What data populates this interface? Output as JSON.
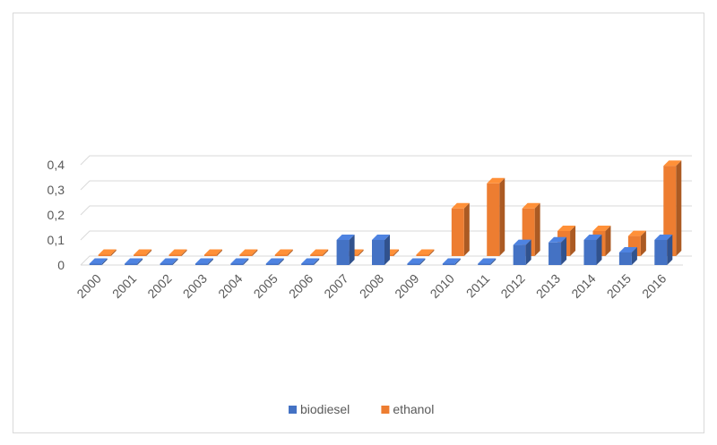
{
  "chart_data": {
    "type": "bar",
    "title": "",
    "xlabel": "",
    "ylabel": "",
    "categories": [
      "2000",
      "2001",
      "2002",
      "2003",
      "2004",
      "2005",
      "2006",
      "2007",
      "2008",
      "2009",
      "2010",
      "2011",
      "2012",
      "2013",
      "2014",
      "2015",
      "2016"
    ],
    "series": [
      {
        "name": "biodiesel",
        "color": "#4472c4",
        "values": [
          0,
          0,
          0,
          0,
          0,
          0,
          0,
          0.1,
          0.1,
          0,
          0,
          0,
          0.08,
          0.09,
          0.1,
          0.05,
          0.1
        ]
      },
      {
        "name": "ethanol",
        "color": "#ed7d31",
        "values": [
          0,
          0,
          0,
          0,
          0,
          0,
          0,
          0,
          0,
          0,
          0.19,
          0.29,
          0.19,
          0.1,
          0.1,
          0.08,
          0.36
        ]
      }
    ],
    "ylim": [
      0,
      0.4
    ],
    "yticks": [
      "0",
      "0,1",
      "0,2",
      "0,3",
      "0,4"
    ],
    "grid": true,
    "legend": "bottom",
    "style": "3d-column"
  }
}
